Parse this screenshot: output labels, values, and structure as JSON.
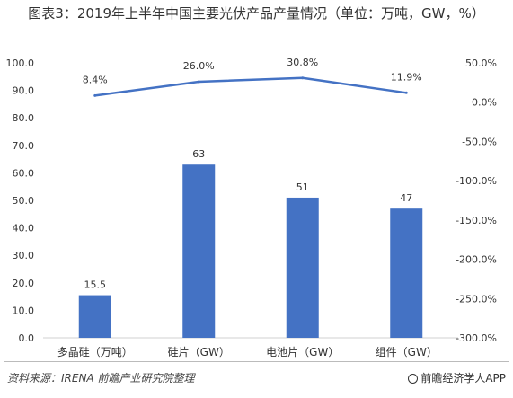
{
  "chart_data": {
    "type": "bar",
    "title": "图表3：2019年上半年中国主要光伏产品产量情况（单位：万吨，GW，%）",
    "categories": [
      "多晶硅（万吨）",
      "硅片（GW）",
      "电池片（GW）",
      "组件（GW）"
    ],
    "series": [
      {
        "type": "bar",
        "axis": "left",
        "values": [
          15.5,
          63,
          51,
          47
        ],
        "color": "#4472C4"
      },
      {
        "type": "line",
        "axis": "right",
        "values": [
          8.4,
          26.0,
          30.8,
          11.9
        ],
        "labels": [
          "8.4%",
          "26.0%",
          "30.8%",
          "11.9%"
        ],
        "color": "#4472C4"
      }
    ],
    "ylim_left": [
      0,
      100
    ],
    "yticks_left": [
      "0.0",
      "10.0",
      "20.0",
      "30.0",
      "40.0",
      "50.0",
      "60.0",
      "70.0",
      "80.0",
      "90.0",
      "100.0"
    ],
    "ylim_right": [
      -300,
      50
    ],
    "yticks_right": [
      "-300.0%",
      "-250.0%",
      "-200.0%",
      "-150.0%",
      "-100.0%",
      "-50.0%",
      "0.0%",
      "50.0%"
    ],
    "grid": false
  },
  "footer": {
    "source": "资料来源：IRENA 前瞻产业研究院整理",
    "brand": "前瞻经济学人APP"
  }
}
